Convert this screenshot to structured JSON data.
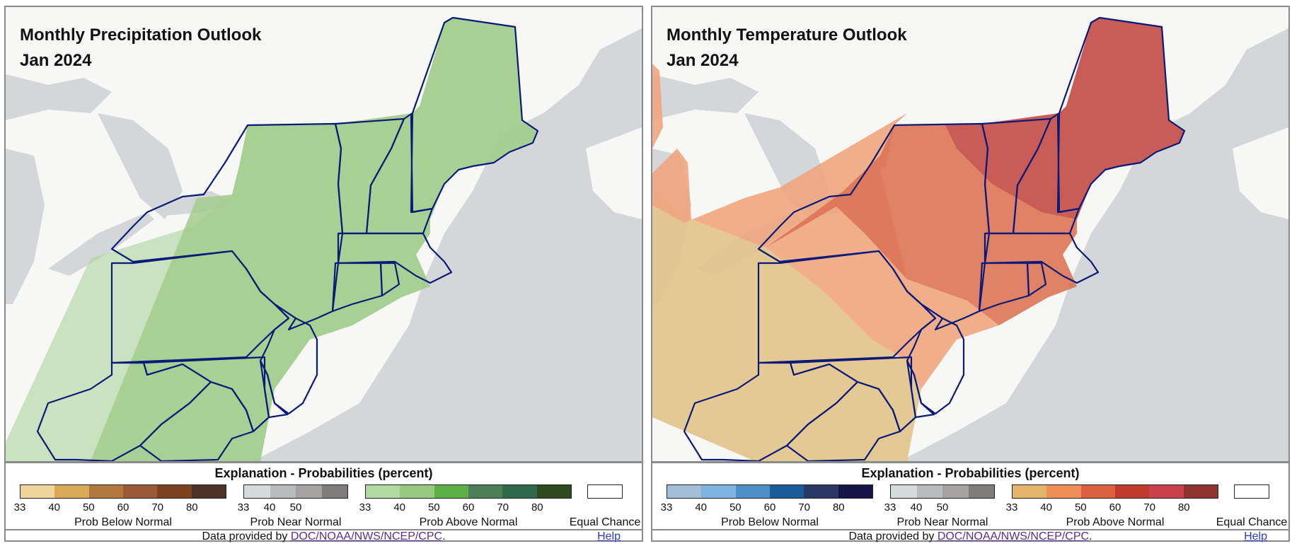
{
  "colors": {
    "water": "#d3d7da",
    "land": "#f7f7f6",
    "border": "#0a1a78",
    "precip_above_33": "#b0d59f",
    "precip_above_40": "#a2cd8d",
    "temp_above_33": "#e2c38b",
    "temp_above_40": "#f0a57e",
    "temp_above_50": "#db7457",
    "temp_above_60": "#c85a57"
  },
  "panels": [
    {
      "id": "precip",
      "title": "Monthly Precipitation Outlook",
      "subtitle": "Jan 2024",
      "legend": {
        "title": "Explanation - Probabilities (percent)",
        "below": {
          "label": "Prob Below Normal",
          "colors": [
            "#f0d59a",
            "#d9aa57",
            "#b3783e",
            "#9a5a37",
            "#7c4321",
            "#4d3228"
          ],
          "ticks": [
            "33",
            "40",
            "50",
            "60",
            "70",
            "80"
          ]
        },
        "near": {
          "label": "Prob Near Normal",
          "colors": [
            "#d6dcdd",
            "#b9bcbd",
            "#a6a2a2",
            "#7f7b7b"
          ],
          "ticks": [
            "33",
            "40",
            "50"
          ]
        },
        "above": {
          "label": "Prob Above Normal",
          "colors": [
            "#b3d9a3",
            "#98cb81",
            "#5daf47",
            "#4b7f55",
            "#30694a",
            "#2e4b1e"
          ],
          "ticks": [
            "33",
            "40",
            "50",
            "60",
            "70",
            "80"
          ]
        },
        "equal": {
          "label": "Equal Chance"
        }
      },
      "footer": {
        "prefix": "Data provided by ",
        "link": "DOC/NOAA/NWS/NCEP/CPC",
        "suffix": ".",
        "help": "Help"
      }
    },
    {
      "id": "temp",
      "title": "Monthly Temperature Outlook",
      "subtitle": "Jan 2024",
      "legend": {
        "title": "Explanation - Probabilities (percent)",
        "below": {
          "label": "Prob Below Normal",
          "colors": [
            "#a5bed8",
            "#7eb2df",
            "#4e8ec4",
            "#1d5b9a",
            "#2a3766",
            "#141449"
          ],
          "ticks": [
            "33",
            "40",
            "50",
            "60",
            "70",
            "80"
          ]
        },
        "near": {
          "label": "Prob Near Normal",
          "colors": [
            "#d6dcdd",
            "#b9bcbd",
            "#a6a2a2",
            "#7f7b7b"
          ],
          "ticks": [
            "33",
            "40",
            "50"
          ]
        },
        "above": {
          "label": "Prob Above Normal",
          "colors": [
            "#e2b46c",
            "#ee8f57",
            "#d9613f",
            "#c23a2c",
            "#c8414b",
            "#8e3531"
          ],
          "ticks": [
            "33",
            "40",
            "50",
            "60",
            "70",
            "80"
          ]
        },
        "equal": {
          "label": "Equal Chance"
        }
      },
      "footer": {
        "prefix": "Data provided by ",
        "link": "DOC/NOAA/NWS/NCEP/CPC",
        "suffix": ".",
        "help": "Help"
      }
    }
  ]
}
